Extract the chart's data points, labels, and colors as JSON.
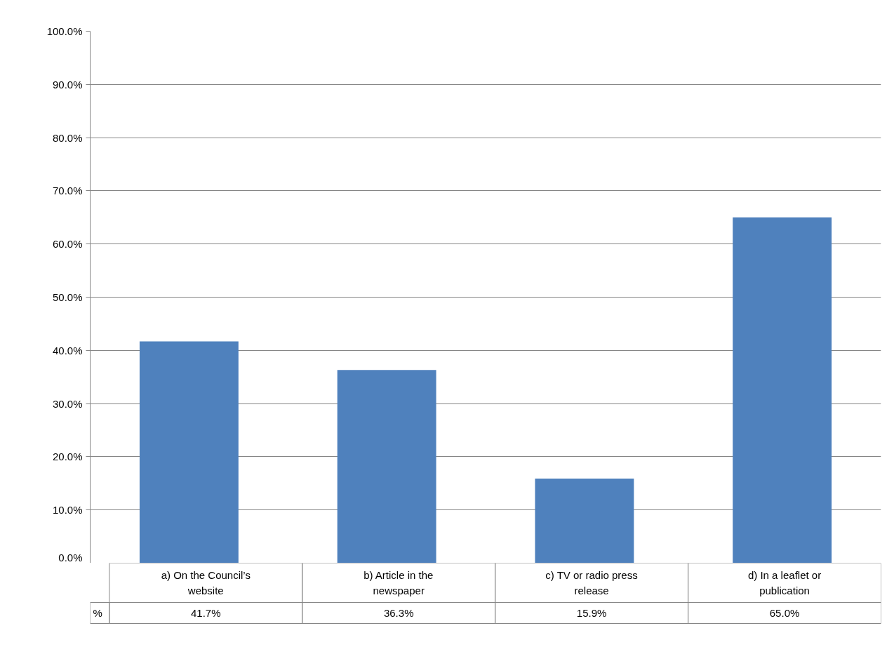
{
  "chart_data": {
    "type": "bar",
    "categories": [
      "a) On the Council’s website",
      "b) Article in the newspaper",
      "c) TV or radio press release",
      "d) In a leaflet or publication"
    ],
    "series": [
      {
        "name": "%",
        "color": "#4f81bd",
        "values": [
          41.7,
          36.3,
          15.9,
          65.0
        ],
        "value_labels": [
          "41.7%",
          "36.3%",
          "15.9%",
          "65.0%"
        ]
      }
    ],
    "ylim": [
      0,
      100
    ],
    "yticks": [
      {
        "value": 0,
        "label": "0.0%"
      },
      {
        "value": 10,
        "label": "10.0%"
      },
      {
        "value": 20,
        "label": "20.0%"
      },
      {
        "value": 30,
        "label": "30.0%"
      },
      {
        "value": 40,
        "label": "40.0%"
      },
      {
        "value": 50,
        "label": "50.0%"
      },
      {
        "value": 60,
        "label": "60.0%"
      },
      {
        "value": 70,
        "label": "70.0%"
      },
      {
        "value": 80,
        "label": "80.0%"
      },
      {
        "value": 90,
        "label": "90.0%"
      },
      {
        "value": 100,
        "label": "100.0%"
      }
    ],
    "grid": "y"
  }
}
